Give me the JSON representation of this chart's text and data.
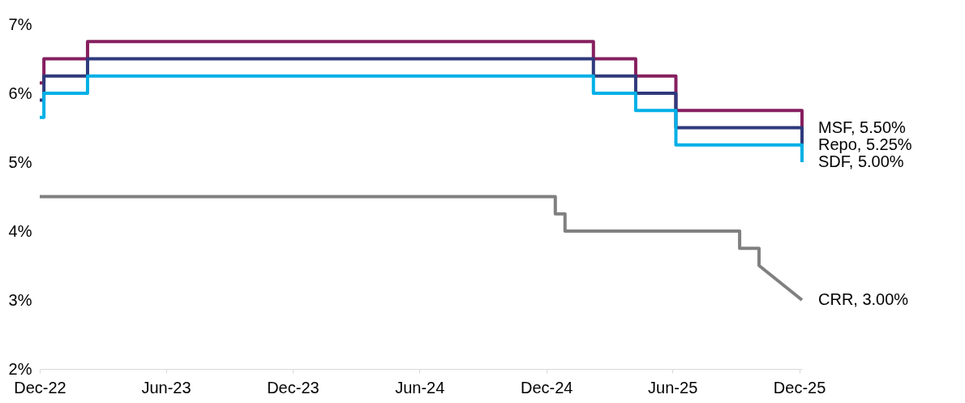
{
  "chart_data": {
    "type": "line",
    "series": [
      {
        "name": "MSF, 5.50%",
        "color": "#861f5f",
        "x": [
          "2022-12-01",
          "2022-12-07",
          "2022-12-07",
          "2023-02-08",
          "2023-02-08",
          "2025-02-07",
          "2025-02-07",
          "2025-04-09",
          "2025-04-09",
          "2025-06-06",
          "2025-06-06",
          "2025-12-05",
          "2025-12-05"
        ],
        "values": [
          6.15,
          6.15,
          6.5,
          6.5,
          6.75,
          6.75,
          6.5,
          6.5,
          6.25,
          6.25,
          5.75,
          5.75,
          5.5
        ]
      },
      {
        "name": "Repo, 5.25%",
        "color": "#2e3a7c",
        "x": [
          "2022-12-01",
          "2022-12-07",
          "2022-12-07",
          "2023-02-08",
          "2023-02-08",
          "2025-02-07",
          "2025-02-07",
          "2025-04-09",
          "2025-04-09",
          "2025-06-06",
          "2025-06-06",
          "2025-12-05",
          "2025-12-05"
        ],
        "values": [
          5.9,
          5.9,
          6.25,
          6.25,
          6.5,
          6.5,
          6.25,
          6.25,
          6.0,
          6.0,
          5.5,
          5.5,
          5.25
        ]
      },
      {
        "name": "SDF, 5.00%",
        "color": "#00b0e6",
        "x": [
          "2022-12-01",
          "2022-12-07",
          "2022-12-07",
          "2023-02-08",
          "2023-02-08",
          "2025-02-07",
          "2025-02-07",
          "2025-04-09",
          "2025-04-09",
          "2025-06-06",
          "2025-06-06",
          "2025-12-05",
          "2025-12-05"
        ],
        "values": [
          5.65,
          5.65,
          6.0,
          6.0,
          6.25,
          6.25,
          6.0,
          6.0,
          5.75,
          5.75,
          5.25,
          5.25,
          5.0
        ]
      },
      {
        "name": "CRR, 3.00%",
        "color": "#808080",
        "x": [
          "2022-12-01",
          "2024-12-14",
          "2024-12-14",
          "2024-12-28",
          "2024-12-28",
          "2025-09-06",
          "2025-09-06",
          "2025-10-04",
          "2025-10-04",
          "2025-12-05"
        ],
        "values": [
          4.5,
          4.5,
          4.25,
          4.25,
          4.0,
          4.0,
          3.75,
          3.75,
          3.5,
          3.0
        ]
      }
    ],
    "xlim": [
      "2022-12-01",
      "2025-12-05"
    ],
    "xticks": [
      {
        "value": "2022-12-01",
        "label": "Dec-22"
      },
      {
        "value": "2023-06-01",
        "label": "Jun-23"
      },
      {
        "value": "2023-12-01",
        "label": "Dec-23"
      },
      {
        "value": "2024-06-01",
        "label": "Jun-24"
      },
      {
        "value": "2024-12-01",
        "label": "Dec-24"
      },
      {
        "value": "2025-06-01",
        "label": "Jun-25"
      },
      {
        "value": "2025-12-01",
        "label": "Dec-25"
      }
    ],
    "ylim": [
      2,
      7
    ],
    "yticks": [
      {
        "value": 2,
        "label": "2%"
      },
      {
        "value": 3,
        "label": "3%"
      },
      {
        "value": 4,
        "label": "4%"
      },
      {
        "value": 5,
        "label": "5%"
      },
      {
        "value": 6,
        "label": "6%"
      },
      {
        "value": 7,
        "label": "7%"
      }
    ],
    "grid": false,
    "legend": false,
    "line_style": "solid",
    "marker": "none"
  }
}
